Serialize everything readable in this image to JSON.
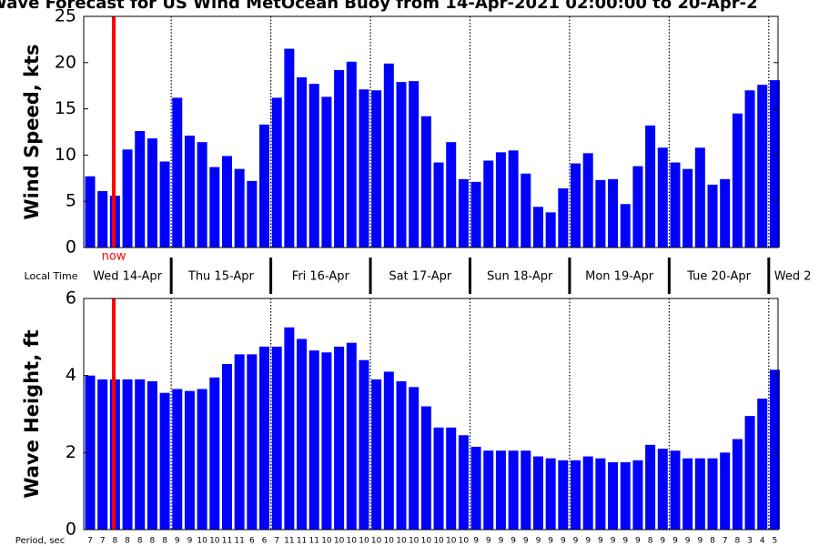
{
  "title": "Wave Forecast for US Wind MetOcean Buoy from 14-Apr-2021 02:00:00 to 20-Apr-2",
  "local_time_label": "Local Time",
  "days": [
    "Wed 14-Apr",
    "Thu 15-Apr",
    "Fri 16-Apr",
    "Sat 17-Apr",
    "Sun 18-Apr",
    "Mon 19-Apr",
    "Tue 20-Apr",
    "Wed 2"
  ],
  "now_label": "now",
  "period_label": "Period, sec",
  "periods": [
    7,
    7,
    8,
    8,
    8,
    8,
    8,
    9,
    9,
    10,
    10,
    11,
    11,
    6,
    6,
    7,
    11,
    11,
    11,
    10,
    10,
    10,
    10,
    10,
    10,
    10,
    10,
    10,
    10,
    10,
    10,
    9,
    9,
    9,
    9,
    9,
    9,
    9,
    9,
    9,
    9,
    9,
    9,
    9,
    9,
    8,
    9,
    9,
    9,
    9,
    8,
    7,
    8,
    3,
    4,
    5
  ],
  "chart_data": [
    {
      "type": "bar",
      "ylabel": "Wind Speed, kts",
      "color": "#0000ff",
      "values": [
        7.7,
        6.1,
        5.6,
        10.6,
        12.6,
        11.8,
        9.3,
        16.2,
        12.1,
        11.4,
        8.7,
        9.9,
        8.5,
        7.2,
        13.3,
        16.2,
        21.5,
        18.4,
        17.7,
        16.3,
        19.2,
        20.1,
        17.1,
        17.0,
        19.9,
        17.9,
        18.0,
        14.2,
        9.2,
        11.4,
        7.4,
        7.1,
        9.4,
        10.3,
        10.5,
        8.0,
        4.4,
        3.8,
        6.4,
        9.1,
        10.2,
        7.3,
        7.4,
        4.7,
        8.8,
        13.2,
        10.8,
        9.2,
        8.5,
        10.8,
        6.8,
        7.4,
        14.5,
        17.0,
        17.6,
        18.1
      ],
      "ylim": [
        0,
        25
      ],
      "yticks": [
        0,
        5,
        10,
        15,
        20,
        25
      ]
    },
    {
      "type": "bar",
      "ylabel": "Wave Height, ft",
      "color": "#0000ff",
      "values": [
        4.0,
        3.9,
        3.9,
        3.9,
        3.9,
        3.85,
        3.55,
        3.65,
        3.6,
        3.65,
        3.95,
        4.3,
        4.55,
        4.55,
        4.75,
        4.75,
        5.25,
        4.95,
        4.65,
        4.6,
        4.75,
        4.85,
        4.4,
        3.9,
        4.1,
        3.85,
        3.7,
        3.2,
        2.65,
        2.65,
        2.45,
        2.15,
        2.05,
        2.05,
        2.05,
        2.05,
        1.9,
        1.85,
        1.8,
        1.8,
        1.9,
        1.85,
        1.75,
        1.75,
        1.8,
        2.2,
        2.1,
        2.05,
        1.85,
        1.85,
        1.85,
        2.0,
        2.35,
        2.95,
        3.4,
        4.15
      ],
      "ylim": [
        0,
        6
      ],
      "yticks": [
        0,
        2,
        4,
        6
      ]
    }
  ]
}
